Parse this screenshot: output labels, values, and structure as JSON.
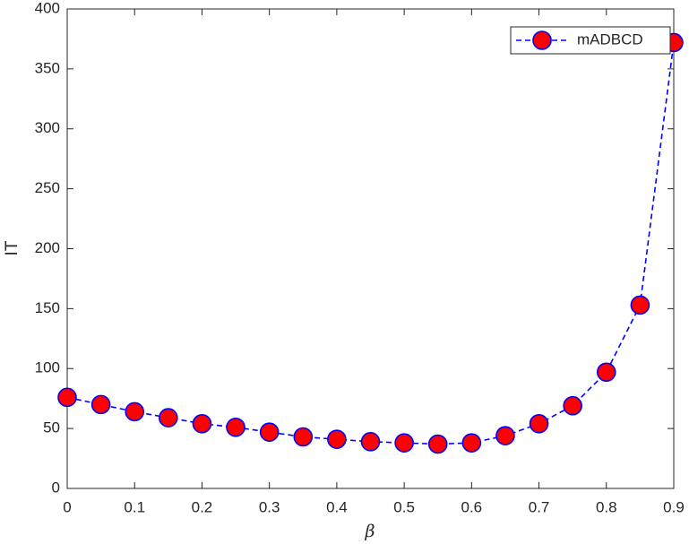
{
  "chart_data": {
    "type": "line",
    "xlabel": "β",
    "ylabel": "IT",
    "x": [
      0,
      0.05,
      0.1,
      0.15,
      0.2,
      0.25,
      0.3,
      0.35,
      0.4,
      0.45,
      0.5,
      0.55,
      0.6,
      0.65,
      0.7,
      0.75,
      0.8,
      0.85,
      0.9
    ],
    "series": [
      {
        "name": "mADBCD",
        "color": "#0000ff",
        "marker_color": "#ff0000",
        "values": [
          76,
          70,
          64,
          59,
          54,
          51,
          47,
          43,
          41,
          39,
          38,
          37,
          38,
          44,
          54,
          69,
          97,
          153,
          372
        ]
      }
    ],
    "xlim": [
      0,
      0.9
    ],
    "xticks": [
      0,
      0.1,
      0.2,
      0.3,
      0.4,
      0.5,
      0.6,
      0.7,
      0.8,
      0.9
    ],
    "ylim": [
      0,
      400
    ],
    "yticks": [
      0,
      50,
      100,
      150,
      200,
      250,
      300,
      350,
      400
    ],
    "grid": false,
    "legend": "top-right"
  }
}
